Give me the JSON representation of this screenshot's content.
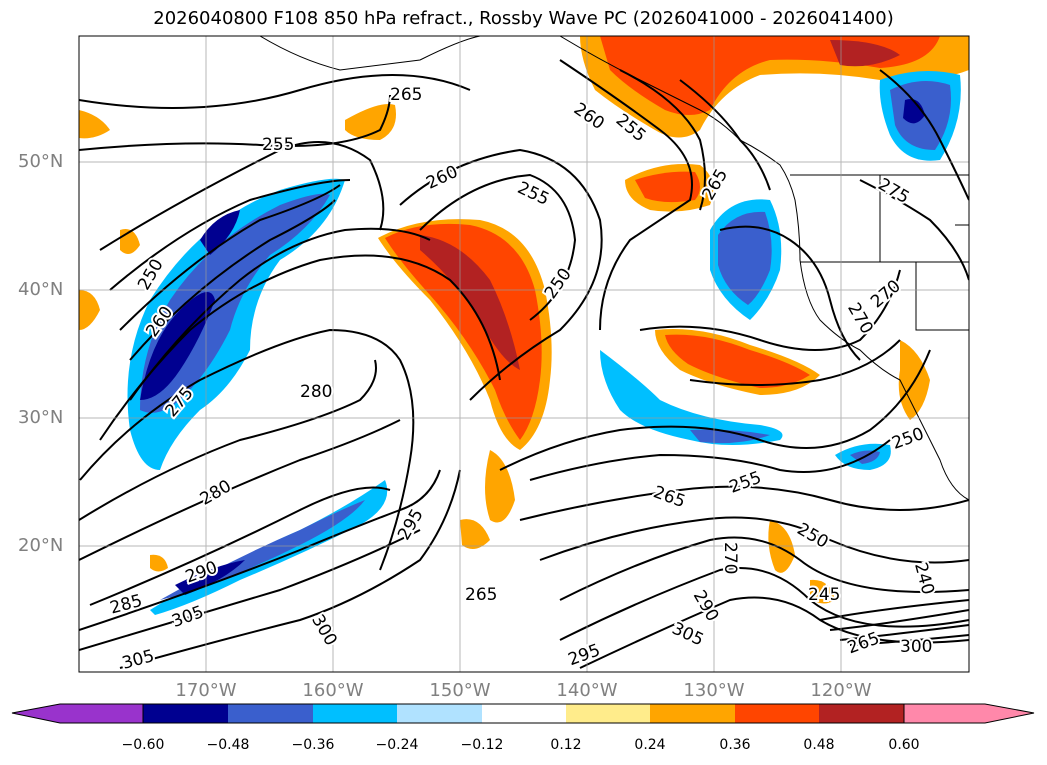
{
  "title": "2026040800 F108 850 hPa refract., Rossby Wave PC (2026041000 - 2026041400)",
  "lat_labels": [
    "50°N",
    "40°N",
    "30°N",
    "20°N"
  ],
  "lon_labels": [
    "170°W",
    "160°W",
    "150°W",
    "140°W",
    "130°W",
    "120°W"
  ],
  "colorbar": {
    "ticks": [
      "−0.60",
      "−0.48",
      "−0.36",
      "−0.24",
      "−0.12",
      "0.12",
      "0.24",
      "0.36",
      "0.48",
      "0.60"
    ],
    "colors": [
      "#9933cc",
      "#000090",
      "#3a5fcd",
      "#00bfff",
      "#b0e2ff",
      "#ffffff",
      "#ffec8b",
      "#ffa500",
      "#ff4500",
      "#b22222",
      "#ff88aa"
    ]
  },
  "contour_labels": [
    "265",
    "255",
    "260",
    "255",
    "260",
    "255",
    "250",
    "265",
    "275",
    "250",
    "260",
    "275",
    "280",
    "280",
    "270",
    "270",
    "295",
    "290",
    "285",
    "305",
    "300",
    "305",
    "265",
    "265",
    "255",
    "250",
    "270",
    "290",
    "245",
    "240",
    "305",
    "295",
    "265",
    "300",
    "250"
  ]
}
